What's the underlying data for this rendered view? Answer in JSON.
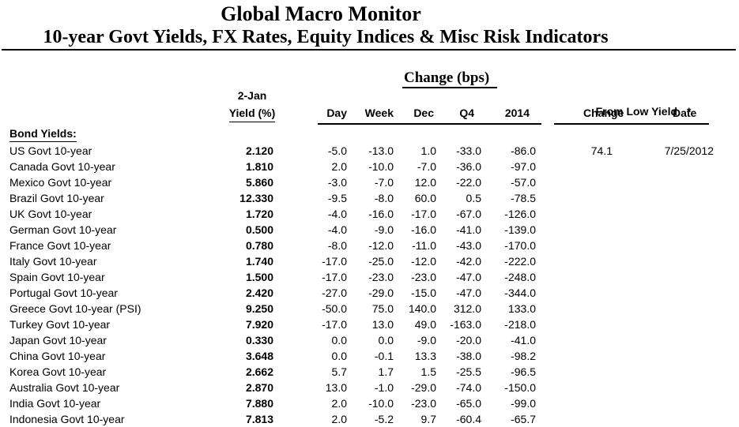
{
  "header": {
    "title": "Global Macro Monitor",
    "subtitle": "10-year Govt Yields, FX Rates, Equity Indices & Misc Risk Indicators"
  },
  "columns": {
    "group_change": "Change (bps)",
    "asof": "2-Jan",
    "yield": "Yield (%)",
    "day": "Day",
    "week": "Week",
    "dec": "Dec",
    "q4": "Q4",
    "y2014": "2014",
    "from_low_group": "From Low Yield",
    "from_low_note": "*",
    "low_change": "Change",
    "low_date": "Date"
  },
  "table": {
    "section_label": "Bond Yields:",
    "rows": [
      {
        "name": "US Govt 10-year",
        "yield": "2.120",
        "day": "-5.0",
        "week": "-13.0",
        "dec": "1.0",
        "q4": "-33.0",
        "y2014": "-86.0",
        "low_change": "74.1",
        "low_date": "7/25/2012"
      },
      {
        "name": "Canada Govt 10-year",
        "yield": "1.810",
        "day": "2.0",
        "week": "-10.0",
        "dec": "-7.0",
        "q4": "-36.0",
        "y2014": "-97.0",
        "low_change": "",
        "low_date": ""
      },
      {
        "name": "Mexico Govt 10-year",
        "yield": "5.860",
        "day": "-3.0",
        "week": "-7.0",
        "dec": "12.0",
        "q4": "-22.0",
        "y2014": "-57.0",
        "low_change": "",
        "low_date": ""
      },
      {
        "name": "Brazil Govt 10-year",
        "yield": "12.330",
        "day": "-9.5",
        "week": "-8.0",
        "dec": "60.0",
        "q4": "0.5",
        "y2014": "-78.5",
        "low_change": "",
        "low_date": ""
      },
      {
        "name": "UK Govt 10-year",
        "yield": "1.720",
        "day": "-4.0",
        "week": "-16.0",
        "dec": "-17.0",
        "q4": "-67.0",
        "y2014": "-126.0",
        "low_change": "",
        "low_date": ""
      },
      {
        "name": "German Govt 10-year",
        "yield": "0.500",
        "day": "-4.0",
        "week": "-9.0",
        "dec": "-16.0",
        "q4": "-41.0",
        "y2014": "-139.0",
        "low_change": "",
        "low_date": ""
      },
      {
        "name": "France Govt 10-year",
        "yield": "0.780",
        "day": "-8.0",
        "week": "-12.0",
        "dec": "-11.0",
        "q4": "-43.0",
        "y2014": "-170.0",
        "low_change": "",
        "low_date": ""
      },
      {
        "name": "Italy Govt 10-year",
        "yield": "1.740",
        "day": "-17.0",
        "week": "-25.0",
        "dec": "-12.0",
        "q4": "-42.0",
        "y2014": "-222.0",
        "low_change": "",
        "low_date": ""
      },
      {
        "name": "Spain Govt 10-year",
        "yield": "1.500",
        "day": "-17.0",
        "week": "-23.0",
        "dec": "-23.0",
        "q4": "-47.0",
        "y2014": "-248.0",
        "low_change": "",
        "low_date": ""
      },
      {
        "name": "Portugal Govt 10-year",
        "yield": "2.420",
        "day": "-27.0",
        "week": "-29.0",
        "dec": "-15.0",
        "q4": "-47.0",
        "y2014": "-344.0",
        "low_change": "",
        "low_date": ""
      },
      {
        "name": "Greece Govt 10-year (PSI)",
        "yield": "9.250",
        "day": "-50.0",
        "week": "75.0",
        "dec": "140.0",
        "q4": "312.0",
        "y2014": "133.0",
        "low_change": "",
        "low_date": ""
      },
      {
        "name": "Turkey Govt 10-year",
        "yield": "7.920",
        "day": "-17.0",
        "week": "13.0",
        "dec": "49.0",
        "q4": "-163.0",
        "y2014": "-218.0",
        "low_change": "",
        "low_date": ""
      },
      {
        "name": "Japan Govt 10-year",
        "yield": "0.330",
        "day": "0.0",
        "week": "0.0",
        "dec": "-9.0",
        "q4": "-20.0",
        "y2014": "-41.0",
        "low_change": "",
        "low_date": ""
      },
      {
        "name": "China Govt 10-year",
        "yield": "3.648",
        "day": "0.0",
        "week": "-0.1",
        "dec": "13.3",
        "q4": "-38.0",
        "y2014": "-98.2",
        "low_change": "",
        "low_date": ""
      },
      {
        "name": "Korea Govt 10-year",
        "yield": "2.662",
        "day": "5.7",
        "week": "1.7",
        "dec": "1.5",
        "q4": "-25.5",
        "y2014": "-96.5",
        "low_change": "",
        "low_date": ""
      },
      {
        "name": "Australia Govt 10-year",
        "yield": "2.870",
        "day": "13.0",
        "week": "-1.0",
        "dec": "-29.0",
        "q4": "-74.0",
        "y2014": "-150.0",
        "low_change": "",
        "low_date": ""
      },
      {
        "name": "India Govt 10-year",
        "yield": "7.880",
        "day": "2.0",
        "week": "-10.0",
        "dec": "-23.0",
        "q4": "-65.0",
        "y2014": "-99.0",
        "low_change": "",
        "low_date": ""
      },
      {
        "name": "Indonesia Govt 10-year",
        "yield": "7.813",
        "day": "2.0",
        "week": "-5.2",
        "dec": "9.7",
        "q4": "-60.4",
        "y2014": "-65.7",
        "low_change": "",
        "low_date": ""
      }
    ]
  }
}
